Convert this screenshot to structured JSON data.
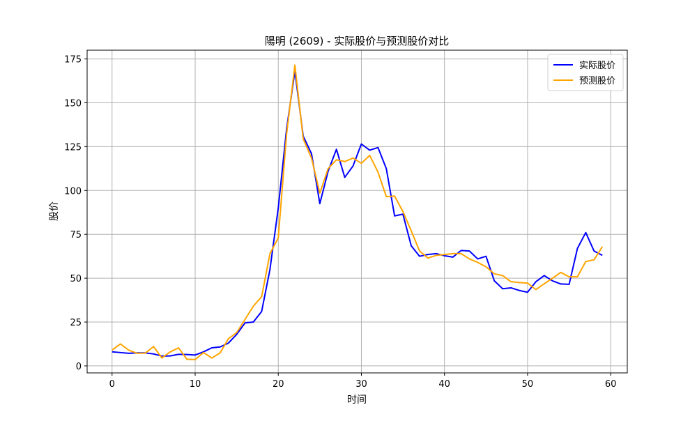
{
  "chart_data": {
    "type": "line",
    "title": "陽明 (2609) - 实际股价与预测股价对比",
    "xlabel": "时间",
    "ylabel": "股价",
    "xlim": [
      -3,
      62
    ],
    "ylim": [
      -4,
      180
    ],
    "xticks": [
      0,
      10,
      20,
      30,
      40,
      50,
      60
    ],
    "yticks": [
      0,
      25,
      50,
      75,
      100,
      125,
      150,
      175
    ],
    "grid": true,
    "legend_position": "upper right",
    "series": [
      {
        "name": "实际股价",
        "color": "#0000ff",
        "x": [
          0,
          1,
          2,
          3,
          4,
          5,
          6,
          7,
          8,
          9,
          10,
          11,
          12,
          13,
          14,
          15,
          16,
          17,
          18,
          19,
          20,
          21,
          22,
          23,
          24,
          25,
          26,
          27,
          28,
          29,
          30,
          31,
          32,
          33,
          34,
          35,
          36,
          37,
          38,
          39,
          40,
          41,
          42,
          43,
          44,
          45,
          46,
          47,
          48,
          49,
          50,
          51,
          52,
          53,
          54,
          55,
          56,
          57,
          58,
          59
        ],
        "values": [
          8.0,
          7.6,
          7.2,
          7.4,
          7.4,
          6.8,
          5.6,
          5.7,
          6.6,
          6.5,
          6.2,
          8.0,
          10.3,
          10.8,
          13.0,
          18.0,
          24.5,
          25.0,
          31.0,
          55.0,
          90.0,
          135.0,
          168.0,
          131.0,
          121.0,
          92.5,
          111.0,
          123.5,
          107.5,
          114.0,
          126.5,
          123.0,
          124.5,
          112.5,
          85.5,
          86.5,
          68.5,
          62.5,
          63.5,
          64.0,
          62.8,
          62.0,
          65.8,
          65.5,
          61.0,
          62.5,
          48.5,
          44.0,
          44.5,
          43.0,
          42.0,
          48.0,
          51.5,
          48.5,
          46.7,
          46.5,
          67.0,
          76.0,
          65.5,
          63.0
        ]
      },
      {
        "name": "预测股价",
        "color": "#ffa500",
        "x": [
          0,
          1,
          2,
          3,
          4,
          5,
          6,
          7,
          8,
          9,
          10,
          11,
          12,
          13,
          14,
          15,
          16,
          17,
          18,
          19,
          20,
          21,
          22,
          23,
          24,
          25,
          26,
          27,
          28,
          29,
          30,
          31,
          32,
          33,
          34,
          35,
          36,
          37,
          38,
          39,
          40,
          41,
          42,
          43,
          44,
          45,
          46,
          47,
          48,
          49,
          50,
          51,
          52,
          53,
          54,
          55,
          56,
          57,
          58,
          59
        ],
        "values": [
          9.0,
          12.5,
          9.0,
          7.2,
          7.3,
          11.0,
          4.5,
          8.0,
          10.3,
          3.8,
          3.6,
          7.6,
          4.5,
          7.4,
          15.5,
          19.0,
          26.5,
          34.0,
          39.5,
          64.0,
          73.0,
          132.0,
          171.5,
          129.5,
          118.5,
          98.5,
          112.5,
          117.5,
          116.5,
          118.5,
          115.5,
          120.0,
          110.5,
          96.5,
          96.8,
          88.0,
          77.0,
          65.5,
          61.5,
          63.0,
          63.5,
          64.0,
          64.0,
          61.0,
          59.0,
          56.5,
          52.5,
          51.5,
          48.0,
          47.5,
          47.2,
          43.5,
          46.8,
          50.0,
          53.3,
          50.8,
          50.8,
          59.5,
          60.5,
          68.0
        ]
      }
    ]
  }
}
